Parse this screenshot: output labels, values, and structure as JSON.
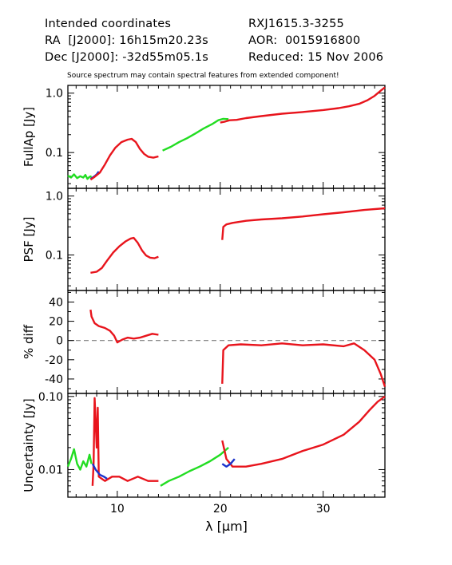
{
  "header": {
    "line1_left": "Intended coordinates",
    "line2_left": "RA  [J2000]: 16h15m20.23s",
    "line3_left": "Dec [J2000]: -32d55m05.1s",
    "line1_right": "RXJ1615.3-3255",
    "line2_right": "AOR:  0015916800",
    "line3_right": "Reduced: 15 Nov 2006",
    "note": "Source spectrum may contain spectral features from extended component!"
  },
  "colors": {
    "red": "#e8141c",
    "green": "#22dd22",
    "blue": "#1a32cc",
    "dashed": "#7f7f7f"
  },
  "chart_data": [
    {
      "id": "fullap",
      "type": "line",
      "ylabel": "FullAp [Jy]",
      "xscale": "linear",
      "yscale": "log",
      "xlim": [
        5.2,
        36.0
      ],
      "ylim": [
        0.025,
        1.35
      ],
      "yticks": [
        {
          "v": 0.1,
          "label": "0.1"
        },
        {
          "v": 1.0,
          "label": "1.0"
        }
      ],
      "series": [
        {
          "color": "green",
          "points": [
            [
              5.2,
              0.041
            ],
            [
              5.5,
              0.038
            ],
            [
              5.8,
              0.043
            ],
            [
              6.1,
              0.037
            ],
            [
              6.4,
              0.04
            ],
            [
              6.7,
              0.038
            ],
            [
              6.9,
              0.042
            ],
            [
              7.1,
              0.036
            ],
            [
              7.3,
              0.039
            ],
            [
              7.5,
              0.04
            ]
          ]
        },
        {
          "color": "blue",
          "points": [
            [
              7.4,
              0.036
            ],
            [
              7.6,
              0.038
            ],
            [
              7.8,
              0.04
            ],
            [
              8.0,
              0.043
            ],
            [
              8.2,
              0.048
            ]
          ]
        },
        {
          "color": "red",
          "points": [
            [
              7.4,
              0.035
            ],
            [
              7.8,
              0.039
            ],
            [
              8.3,
              0.046
            ],
            [
              8.8,
              0.063
            ],
            [
              9.3,
              0.09
            ],
            [
              9.8,
              0.12
            ],
            [
              10.4,
              0.15
            ],
            [
              11.0,
              0.165
            ],
            [
              11.4,
              0.17
            ],
            [
              11.8,
              0.15
            ],
            [
              12.2,
              0.115
            ],
            [
              12.6,
              0.095
            ],
            [
              13.0,
              0.085
            ],
            [
              13.5,
              0.082
            ],
            [
              14.0,
              0.086
            ]
          ]
        },
        {
          "color": "green",
          "points": [
            [
              14.4,
              0.108
            ],
            [
              15.2,
              0.125
            ],
            [
              16.0,
              0.15
            ],
            [
              16.8,
              0.175
            ],
            [
              17.6,
              0.21
            ],
            [
              18.4,
              0.255
            ],
            [
              19.2,
              0.3
            ],
            [
              19.8,
              0.35
            ],
            [
              20.3,
              0.37
            ],
            [
              20.8,
              0.365
            ]
          ]
        },
        {
          "color": "red",
          "points": [
            [
              20.0,
              0.32
            ],
            [
              20.4,
              0.33
            ],
            [
              20.9,
              0.35
            ],
            [
              21.6,
              0.355
            ],
            [
              22.5,
              0.38
            ],
            [
              24.0,
              0.41
            ],
            [
              26.0,
              0.45
            ],
            [
              28.0,
              0.48
            ],
            [
              30.0,
              0.52
            ],
            [
              31.5,
              0.56
            ],
            [
              32.5,
              0.6
            ],
            [
              33.5,
              0.66
            ],
            [
              34.3,
              0.76
            ],
            [
              35.0,
              0.9
            ],
            [
              35.6,
              1.1
            ],
            [
              36.0,
              1.25
            ]
          ]
        }
      ]
    },
    {
      "id": "psf",
      "type": "line",
      "ylabel": "PSF [Jy]",
      "xscale": "linear",
      "yscale": "log",
      "xlim": [
        5.2,
        36.0
      ],
      "ylim": [
        0.025,
        1.35
      ],
      "yticks": [
        {
          "v": 0.1,
          "label": "0.1"
        },
        {
          "v": 1.0,
          "label": "1.0"
        }
      ],
      "series": [
        {
          "color": "red",
          "points": [
            [
              7.4,
              0.05
            ],
            [
              8.0,
              0.052
            ],
            [
              8.5,
              0.06
            ],
            [
              9.0,
              0.08
            ],
            [
              9.6,
              0.11
            ],
            [
              10.2,
              0.14
            ],
            [
              10.8,
              0.17
            ],
            [
              11.3,
              0.19
            ],
            [
              11.6,
              0.195
            ],
            [
              12.0,
              0.16
            ],
            [
              12.4,
              0.12
            ],
            [
              12.8,
              0.098
            ],
            [
              13.2,
              0.09
            ],
            [
              13.6,
              0.088
            ],
            [
              14.0,
              0.093
            ]
          ]
        },
        {
          "color": "red",
          "points": [
            [
              20.2,
              0.18
            ],
            [
              20.3,
              0.3
            ],
            [
              20.6,
              0.33
            ],
            [
              21.2,
              0.35
            ],
            [
              22.5,
              0.38
            ],
            [
              24.0,
              0.4
            ],
            [
              26.0,
              0.42
            ],
            [
              28.0,
              0.45
            ],
            [
              30.0,
              0.49
            ],
            [
              32.0,
              0.53
            ],
            [
              34.0,
              0.58
            ],
            [
              36.0,
              0.62
            ]
          ]
        }
      ]
    },
    {
      "id": "diff",
      "type": "line",
      "ylabel": "% diff",
      "xscale": "linear",
      "yscale": "linear",
      "xlim": [
        5.2,
        36.0
      ],
      "ylim": [
        -55,
        52
      ],
      "yticks": [
        {
          "v": 40,
          "label": "40"
        },
        {
          "v": 20,
          "label": "20"
        },
        {
          "v": 0,
          "label": "0"
        },
        {
          "v": -20,
          "label": "-20"
        },
        {
          "v": -40,
          "label": "-40"
        }
      ],
      "zero_line": true,
      "series": [
        {
          "color": "red",
          "points": [
            [
              7.4,
              32
            ],
            [
              7.5,
              25
            ],
            [
              7.8,
              18
            ],
            [
              8.2,
              15
            ],
            [
              8.8,
              13
            ],
            [
              9.3,
              10
            ],
            [
              9.7,
              5
            ],
            [
              10.0,
              -2
            ],
            [
              10.5,
              1
            ],
            [
              11.0,
              3
            ],
            [
              11.6,
              2
            ],
            [
              12.2,
              3
            ],
            [
              12.8,
              5
            ],
            [
              13.4,
              7
            ],
            [
              14.0,
              6
            ]
          ]
        },
        {
          "color": "red",
          "points": [
            [
              20.2,
              -45
            ],
            [
              20.3,
              -10
            ],
            [
              20.8,
              -5
            ],
            [
              22.0,
              -4
            ],
            [
              24.0,
              -5
            ],
            [
              26.0,
              -3
            ],
            [
              28.0,
              -5
            ],
            [
              30.0,
              -4
            ],
            [
              32.0,
              -6
            ],
            [
              33.0,
              -3
            ],
            [
              34.0,
              -10
            ],
            [
              35.0,
              -20
            ],
            [
              35.6,
              -35
            ],
            [
              36.0,
              -48
            ]
          ]
        }
      ]
    },
    {
      "id": "uncert",
      "type": "line",
      "ylabel": "Uncertainty [Jy]",
      "xlabel": "λ [μm]",
      "xscale": "linear",
      "yscale": "log",
      "xlim": [
        5.2,
        36.0
      ],
      "ylim": [
        0.0042,
        0.11
      ],
      "xticks": [
        {
          "v": 10,
          "label": "10"
        },
        {
          "v": 20,
          "label": "20"
        },
        {
          "v": 30,
          "label": "30"
        }
      ],
      "yticks": [
        {
          "v": 0.01,
          "label": "0.01"
        },
        {
          "v": 0.1,
          "label": "0.10"
        }
      ],
      "series": [
        {
          "color": "green",
          "points": [
            [
              5.2,
              0.011
            ],
            [
              5.5,
              0.014
            ],
            [
              5.8,
              0.019
            ],
            [
              6.1,
              0.012
            ],
            [
              6.4,
              0.01
            ],
            [
              6.7,
              0.013
            ],
            [
              7.0,
              0.011
            ],
            [
              7.3,
              0.016
            ],
            [
              7.5,
              0.012
            ]
          ]
        },
        {
          "color": "red",
          "points": [
            [
              7.6,
              0.006
            ],
            [
              7.7,
              0.012
            ],
            [
              7.8,
              0.095
            ],
            [
              8.0,
              0.02
            ],
            [
              8.1,
              0.07
            ],
            [
              8.2,
              0.008
            ],
            [
              8.8,
              0.007
            ],
            [
              9.5,
              0.008
            ],
            [
              10.2,
              0.008
            ],
            [
              11.0,
              0.007
            ],
            [
              12.0,
              0.008
            ],
            [
              13.0,
              0.007
            ],
            [
              14.0,
              0.007
            ]
          ]
        },
        {
          "color": "blue",
          "points": [
            [
              7.6,
              0.012
            ],
            [
              7.9,
              0.01
            ],
            [
              8.3,
              0.0085
            ],
            [
              8.7,
              0.008
            ],
            [
              9.0,
              0.0075
            ]
          ]
        },
        {
          "color": "green",
          "points": [
            [
              14.2,
              0.006
            ],
            [
              15.0,
              0.007
            ],
            [
              16.0,
              0.008
            ],
            [
              17.0,
              0.0095
            ],
            [
              18.0,
              0.011
            ],
            [
              19.0,
              0.013
            ],
            [
              20.0,
              0.016
            ],
            [
              20.8,
              0.02
            ]
          ]
        },
        {
          "color": "red",
          "points": [
            [
              20.2,
              0.025
            ],
            [
              20.6,
              0.014
            ],
            [
              21.2,
              0.011
            ],
            [
              22.5,
              0.011
            ],
            [
              24.0,
              0.012
            ],
            [
              26.0,
              0.014
            ],
            [
              28.0,
              0.018
            ],
            [
              30.0,
              0.022
            ],
            [
              32.0,
              0.03
            ],
            [
              33.5,
              0.045
            ],
            [
              34.5,
              0.065
            ],
            [
              35.3,
              0.085
            ],
            [
              36.0,
              0.1
            ]
          ]
        },
        {
          "color": "blue",
          "points": [
            [
              20.2,
              0.012
            ],
            [
              20.6,
              0.011
            ],
            [
              21.0,
              0.012
            ],
            [
              21.4,
              0.014
            ]
          ]
        }
      ]
    }
  ]
}
